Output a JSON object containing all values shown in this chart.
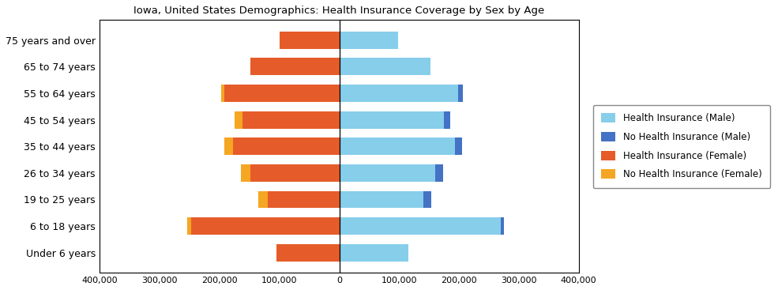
{
  "title": "Iowa, United States Demographics: Health Insurance Coverage by Sex by Age",
  "age_groups": [
    "Under 6 years",
    "6 to 18 years",
    "19 to 25 years",
    "26 to 34 years",
    "35 to 44 years",
    "45 to 54 years",
    "55 to 64 years",
    "65 to 74 years",
    "75 years and over"
  ],
  "male_insured": [
    115000,
    270000,
    140000,
    160000,
    193000,
    175000,
    198000,
    152000,
    98000
  ],
  "male_uninsured": [
    0,
    5000,
    13000,
    14000,
    12000,
    10000,
    8000,
    0,
    0
  ],
  "female_insured": [
    105000,
    248000,
    120000,
    148000,
    178000,
    162000,
    192000,
    148000,
    100000
  ],
  "female_uninsured": [
    0,
    6000,
    16000,
    16000,
    14000,
    13000,
    6000,
    0,
    0
  ],
  "color_male_insured": "#87CEEB",
  "color_male_uninsured": "#4472C4",
  "color_female_insured": "#E55C2A",
  "color_female_uninsured": "#F5A623",
  "xlim": [
    -400000,
    400000
  ],
  "xticks": [
    -400000,
    -300000,
    -200000,
    -100000,
    0,
    100000,
    200000,
    300000,
    400000
  ],
  "legend_labels": [
    "Health Insurance (Male)",
    "No Health Insurance (Male)",
    "Health Insurance (Female)",
    "No Health Insurance (Female)"
  ],
  "figsize": [
    9.85,
    3.67
  ],
  "dpi": 100
}
